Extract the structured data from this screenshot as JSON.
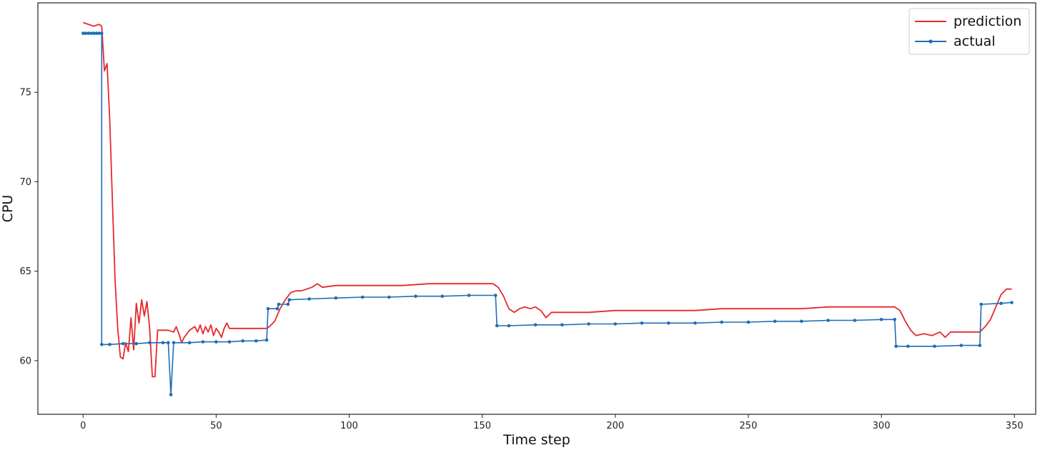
{
  "chart_data": {
    "type": "line",
    "title": "",
    "xlabel": "Time step",
    "ylabel": "CPU",
    "xlim": [
      -17,
      358
    ],
    "ylim": [
      57.0,
      80.0
    ],
    "xticks": [
      0,
      50,
      100,
      150,
      200,
      250,
      300,
      350
    ],
    "yticks": [
      60,
      65,
      70,
      75
    ],
    "grid": false,
    "legend": "top-right",
    "series": [
      {
        "name": "prediction",
        "color": "#e8282b",
        "marker": "none",
        "points": [
          [
            0,
            78.9
          ],
          [
            2,
            78.8
          ],
          [
            4,
            78.7
          ],
          [
            6,
            78.8
          ],
          [
            7,
            78.7
          ],
          [
            8,
            76.2
          ],
          [
            9,
            76.6
          ],
          [
            10,
            73.5
          ],
          [
            11,
            69.0
          ],
          [
            12,
            64.5
          ],
          [
            13,
            61.8
          ],
          [
            14,
            60.2
          ],
          [
            15,
            60.1
          ],
          [
            16,
            61.0
          ],
          [
            17,
            60.5
          ],
          [
            18,
            62.4
          ],
          [
            19,
            60.6
          ],
          [
            20,
            63.2
          ],
          [
            21,
            62.1
          ],
          [
            22,
            63.4
          ],
          [
            23,
            62.5
          ],
          [
            24,
            63.3
          ],
          [
            25,
            61.8
          ],
          [
            26,
            59.1
          ],
          [
            27,
            59.1
          ],
          [
            28,
            61.7
          ],
          [
            30,
            61.7
          ],
          [
            32,
            61.7
          ],
          [
            34,
            61.6
          ],
          [
            35,
            61.9
          ],
          [
            36,
            61.5
          ],
          [
            37,
            61.0
          ],
          [
            38,
            61.3
          ],
          [
            40,
            61.7
          ],
          [
            42,
            61.9
          ],
          [
            43,
            61.6
          ],
          [
            44,
            62.0
          ],
          [
            45,
            61.5
          ],
          [
            46,
            61.9
          ],
          [
            47,
            61.6
          ],
          [
            48,
            62.0
          ],
          [
            49,
            61.4
          ],
          [
            50,
            61.8
          ],
          [
            51,
            61.6
          ],
          [
            52,
            61.3
          ],
          [
            53,
            61.8
          ],
          [
            54,
            62.1
          ],
          [
            55,
            61.8
          ],
          [
            58,
            61.8
          ],
          [
            62,
            61.8
          ],
          [
            66,
            61.8
          ],
          [
            69,
            61.8
          ],
          [
            70,
            61.9
          ],
          [
            72,
            62.2
          ],
          [
            74,
            62.9
          ],
          [
            76,
            63.4
          ],
          [
            78,
            63.8
          ],
          [
            80,
            63.9
          ],
          [
            82,
            63.9
          ],
          [
            84,
            64.0
          ],
          [
            86,
            64.1
          ],
          [
            88,
            64.3
          ],
          [
            90,
            64.1
          ],
          [
            95,
            64.2
          ],
          [
            100,
            64.2
          ],
          [
            110,
            64.2
          ],
          [
            120,
            64.2
          ],
          [
            130,
            64.3
          ],
          [
            140,
            64.3
          ],
          [
            150,
            64.3
          ],
          [
            154,
            64.3
          ],
          [
            156,
            64.1
          ],
          [
            158,
            63.6
          ],
          [
            160,
            62.9
          ],
          [
            162,
            62.7
          ],
          [
            164,
            62.9
          ],
          [
            166,
            63.0
          ],
          [
            168,
            62.9
          ],
          [
            170,
            63.0
          ],
          [
            172,
            62.8
          ],
          [
            174,
            62.4
          ],
          [
            176,
            62.7
          ],
          [
            180,
            62.7
          ],
          [
            190,
            62.7
          ],
          [
            200,
            62.8
          ],
          [
            210,
            62.8
          ],
          [
            220,
            62.8
          ],
          [
            230,
            62.8
          ],
          [
            240,
            62.9
          ],
          [
            250,
            62.9
          ],
          [
            260,
            62.9
          ],
          [
            270,
            62.9
          ],
          [
            280,
            63.0
          ],
          [
            290,
            63.0
          ],
          [
            300,
            63.0
          ],
          [
            305,
            63.0
          ],
          [
            307,
            62.8
          ],
          [
            309,
            62.2
          ],
          [
            311,
            61.7
          ],
          [
            313,
            61.4
          ],
          [
            316,
            61.5
          ],
          [
            319,
            61.4
          ],
          [
            322,
            61.6
          ],
          [
            324,
            61.3
          ],
          [
            326,
            61.6
          ],
          [
            330,
            61.6
          ],
          [
            334,
            61.6
          ],
          [
            337,
            61.6
          ],
          [
            339,
            61.9
          ],
          [
            341,
            62.3
          ],
          [
            343,
            63.0
          ],
          [
            345,
            63.7
          ],
          [
            347,
            64.0
          ],
          [
            349,
            64.0
          ]
        ]
      },
      {
        "name": "actual",
        "color": "#1f6db4",
        "marker": "dot",
        "points": [
          [
            0,
            78.3
          ],
          [
            1,
            78.3
          ],
          [
            2,
            78.3
          ],
          [
            3,
            78.3
          ],
          [
            4,
            78.3
          ],
          [
            5,
            78.3
          ],
          [
            6,
            78.3
          ],
          [
            7,
            78.3
          ],
          [
            7,
            60.9
          ],
          [
            10,
            60.9
          ],
          [
            15,
            60.95
          ],
          [
            20,
            60.95
          ],
          [
            25,
            61.0
          ],
          [
            30,
            61.0
          ],
          [
            32,
            61.0
          ],
          [
            33,
            58.1
          ],
          [
            34,
            61.0
          ],
          [
            40,
            61.0
          ],
          [
            45,
            61.05
          ],
          [
            50,
            61.05
          ],
          [
            55,
            61.05
          ],
          [
            60,
            61.1
          ],
          [
            65,
            61.1
          ],
          [
            69,
            61.15
          ],
          [
            69.5,
            62.9
          ],
          [
            73,
            62.9
          ],
          [
            73.5,
            63.15
          ],
          [
            77,
            63.15
          ],
          [
            77.5,
            63.4
          ],
          [
            85,
            63.45
          ],
          [
            95,
            63.5
          ],
          [
            105,
            63.55
          ],
          [
            115,
            63.55
          ],
          [
            125,
            63.6
          ],
          [
            135,
            63.6
          ],
          [
            145,
            63.65
          ],
          [
            155,
            63.65
          ],
          [
            155.5,
            61.95
          ],
          [
            160,
            61.95
          ],
          [
            170,
            62.0
          ],
          [
            180,
            62.0
          ],
          [
            190,
            62.05
          ],
          [
            200,
            62.05
          ],
          [
            210,
            62.1
          ],
          [
            220,
            62.1
          ],
          [
            230,
            62.1
          ],
          [
            240,
            62.15
          ],
          [
            250,
            62.15
          ],
          [
            260,
            62.2
          ],
          [
            270,
            62.2
          ],
          [
            280,
            62.25
          ],
          [
            290,
            62.25
          ],
          [
            300,
            62.3
          ],
          [
            305,
            62.3
          ],
          [
            305.5,
            60.8
          ],
          [
            310,
            60.8
          ],
          [
            320,
            60.8
          ],
          [
            330,
            60.85
          ],
          [
            337,
            60.85
          ],
          [
            337.5,
            63.15
          ],
          [
            345,
            63.2
          ],
          [
            349,
            63.25
          ]
        ]
      }
    ]
  }
}
